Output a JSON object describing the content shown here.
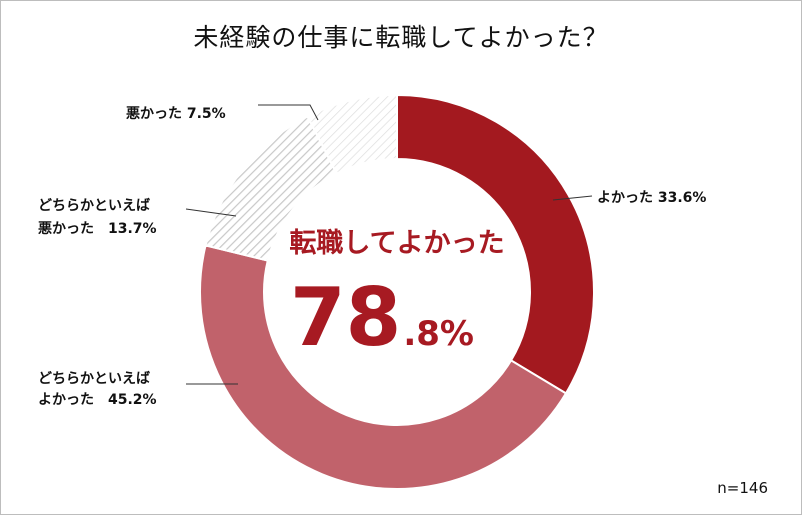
{
  "title": "未経験の仕事に転職してよかった？",
  "n_label": "n=146",
  "center": {
    "label": "転職してよかった",
    "value_int": "78",
    "value_dec": ".8%"
  },
  "colors": {
    "good": "#a3191f",
    "somewhat_good": "#c1626b",
    "hatch_line": "#cfcfcf",
    "center_text": "#a71a22"
  },
  "chart_data": {
    "type": "pie",
    "title": "未経験の仕事に転職してよかった？",
    "slices": [
      {
        "label": "よかった",
        "value": 33.6,
        "label_text": "よかった 33.6%",
        "style": "solid-dark"
      },
      {
        "label": "どちらかといえばよかった",
        "value": 45.2,
        "label_text_1": "どちらかといえば",
        "label_text_2": "よかった　45.2%",
        "style": "solid-light"
      },
      {
        "label": "どちらかといえば悪かった",
        "value": 13.7,
        "label_text_1": "どちらかといえば",
        "label_text_2": "悪かった　13.7%",
        "style": "hatch-dense"
      },
      {
        "label": "悪かった",
        "value": 7.5,
        "label_text": "悪かった 7.5%",
        "style": "hatch-light"
      }
    ],
    "donut": true,
    "sample_size": "n=146"
  }
}
